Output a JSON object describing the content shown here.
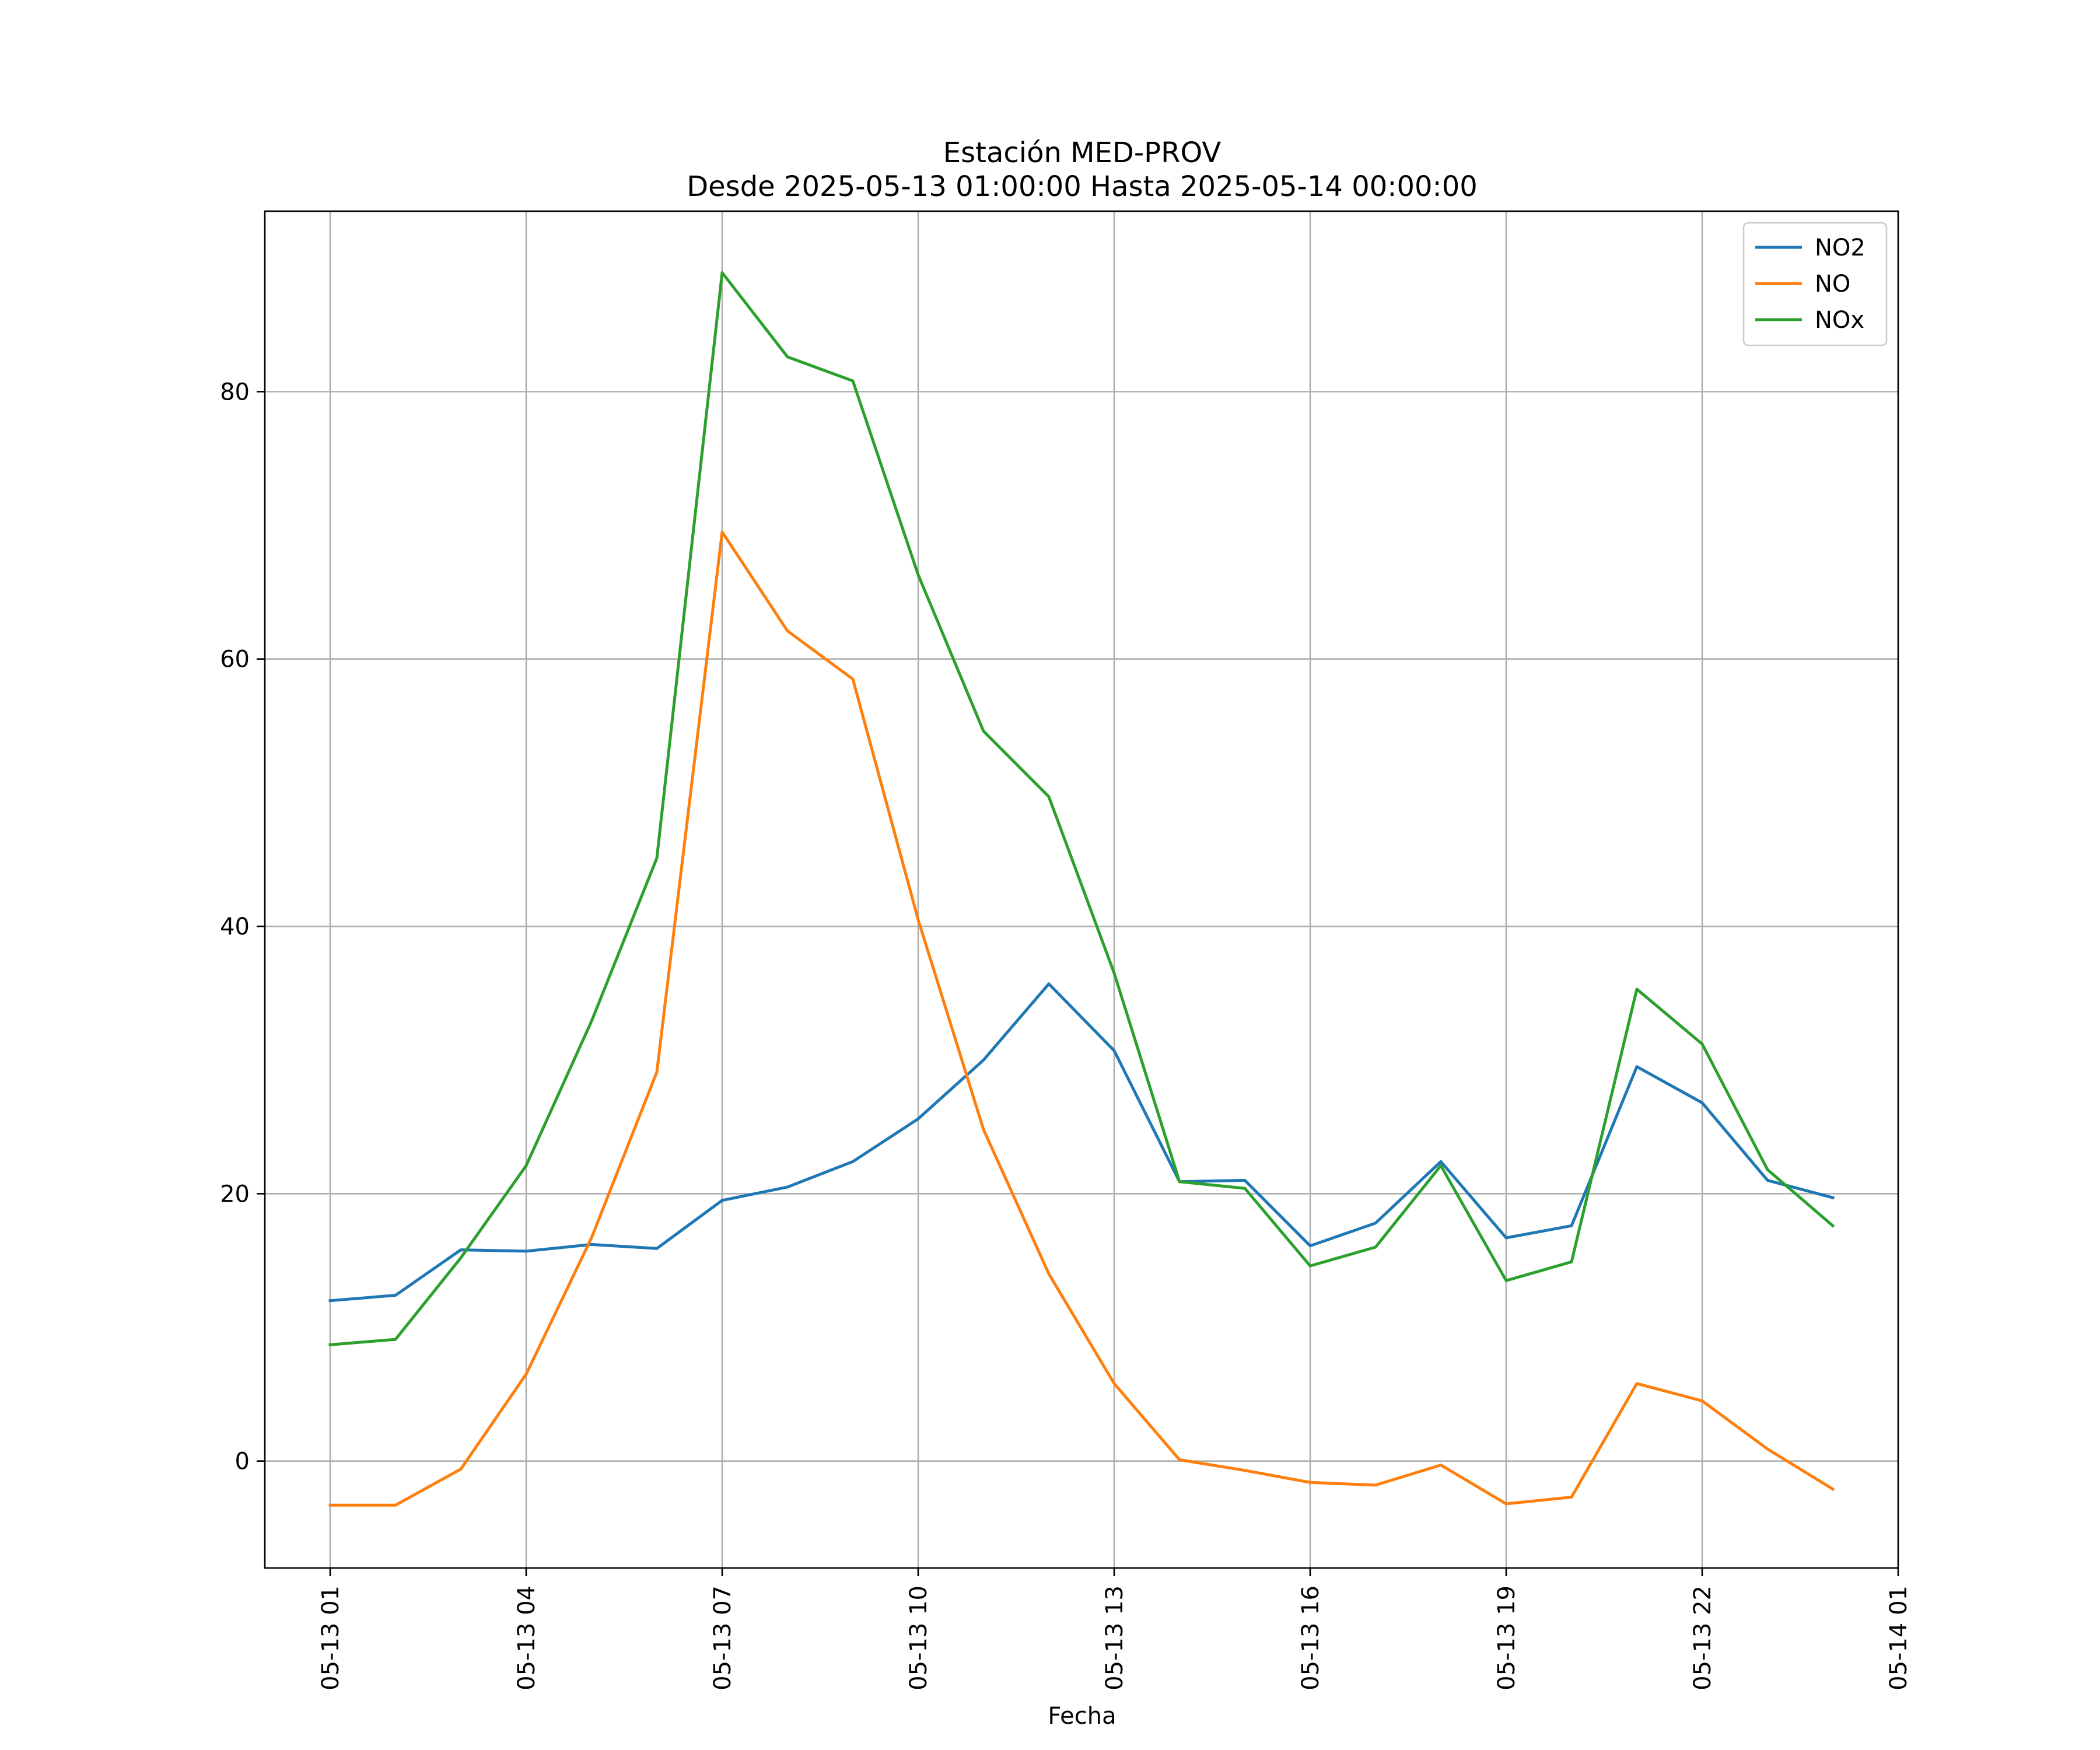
{
  "chart_data": {
    "type": "line",
    "title": "Estación MED-PROV",
    "subtitle": "Desde 2025-05-13 01:00:00 Hasta 2025-05-14 00:00:00",
    "xlabel": "Fecha",
    "ylabel": "",
    "x": [
      "2025-05-13 01:00",
      "2025-05-13 02:00",
      "2025-05-13 03:00",
      "2025-05-13 04:00",
      "2025-05-13 05:00",
      "2025-05-13 06:00",
      "2025-05-13 07:00",
      "2025-05-13 08:00",
      "2025-05-13 09:00",
      "2025-05-13 10:00",
      "2025-05-13 11:00",
      "2025-05-13 12:00",
      "2025-05-13 13:00",
      "2025-05-13 14:00",
      "2025-05-13 15:00",
      "2025-05-13 16:00",
      "2025-05-13 17:00",
      "2025-05-13 18:00",
      "2025-05-13 19:00",
      "2025-05-13 20:00",
      "2025-05-13 21:00",
      "2025-05-13 22:00",
      "2025-05-13 23:00",
      "2025-05-14 00:00"
    ],
    "xlim": [
      "2025-05-13 00:00",
      "2025-05-14 01:00"
    ],
    "xticks": [
      {
        "x": "2025-05-13 01:00",
        "label": "05-13 01"
      },
      {
        "x": "2025-05-13 04:00",
        "label": "05-13 04"
      },
      {
        "x": "2025-05-13 07:00",
        "label": "05-13 07"
      },
      {
        "x": "2025-05-13 10:00",
        "label": "05-13 10"
      },
      {
        "x": "2025-05-13 13:00",
        "label": "05-13 13"
      },
      {
        "x": "2025-05-13 16:00",
        "label": "05-13 16"
      },
      {
        "x": "2025-05-13 19:00",
        "label": "05-13 19"
      },
      {
        "x": "2025-05-13 22:00",
        "label": "05-13 22"
      },
      {
        "x": "2025-05-14 01:00",
        "label": "05-14 01"
      }
    ],
    "ylim": [
      -8,
      93.5
    ],
    "yticks": [
      0,
      20,
      40,
      60,
      80
    ],
    "grid": true,
    "legend_position": "top-right",
    "series": [
      {
        "name": "NO2",
        "color": "#1f77b4",
        "values": [
          12.0,
          12.4,
          15.8,
          15.7,
          16.2,
          15.9,
          19.5,
          20.5,
          22.4,
          25.6,
          30.0,
          35.7,
          30.7,
          20.9,
          21.0,
          16.1,
          17.8,
          22.4,
          16.7,
          17.6,
          29.5,
          26.8,
          21.0,
          19.7
        ]
      },
      {
        "name": "NO",
        "color": "#ff7f0e",
        "values": [
          -3.3,
          -3.3,
          -0.6,
          6.5,
          16.7,
          29.1,
          69.5,
          62.1,
          58.5,
          40.5,
          24.8,
          14.0,
          5.8,
          0.1,
          -0.7,
          -1.6,
          -1.8,
          -0.3,
          -3.2,
          -2.7,
          5.8,
          4.5,
          0.9,
          -2.1
        ]
      },
      {
        "name": "NOx",
        "color": "#2ca02c",
        "values": [
          8.7,
          9.1,
          15.2,
          22.1,
          32.9,
          45.1,
          88.9,
          82.6,
          80.8,
          66.3,
          54.6,
          49.7,
          36.5,
          20.9,
          20.4,
          14.6,
          16.0,
          22.1,
          13.5,
          14.9,
          35.3,
          31.2,
          21.8,
          17.6
        ]
      }
    ]
  }
}
